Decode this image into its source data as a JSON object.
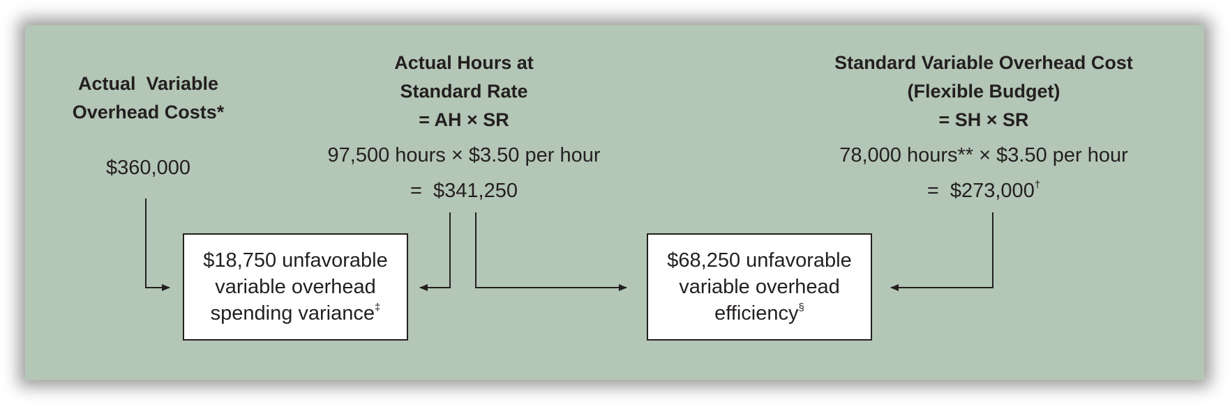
{
  "columns": {
    "actual": {
      "header": [
        "Actual  Variable",
        "Overhead Costs*"
      ],
      "value": "$360,000"
    },
    "ah_sr": {
      "header": [
        "Actual Hours at",
        "Standard Rate",
        "= AH × SR"
      ],
      "calc": "97,500 hours × $3.50 per hour",
      "result": "=  $341,250"
    },
    "sh_sr": {
      "header": [
        "Standard Variable Overhead Cost",
        "(Flexible Budget)",
        "= SH × SR"
      ],
      "calc": "78,000 hours** × $3.50 per hour",
      "result": "=  $273,000",
      "result_mark": "†"
    }
  },
  "variances": {
    "spending": {
      "lines": [
        "$18,750 unfavorable",
        "variable overhead",
        "spending variance"
      ],
      "mark": "‡"
    },
    "efficiency": {
      "lines": [
        "$68,250 unfavorable",
        "variable overhead",
        "efficiency"
      ],
      "mark": "§"
    }
  },
  "colors": {
    "panel": "#b4c6b5",
    "text": "#231f20",
    "box_fill": "#ffffff"
  }
}
